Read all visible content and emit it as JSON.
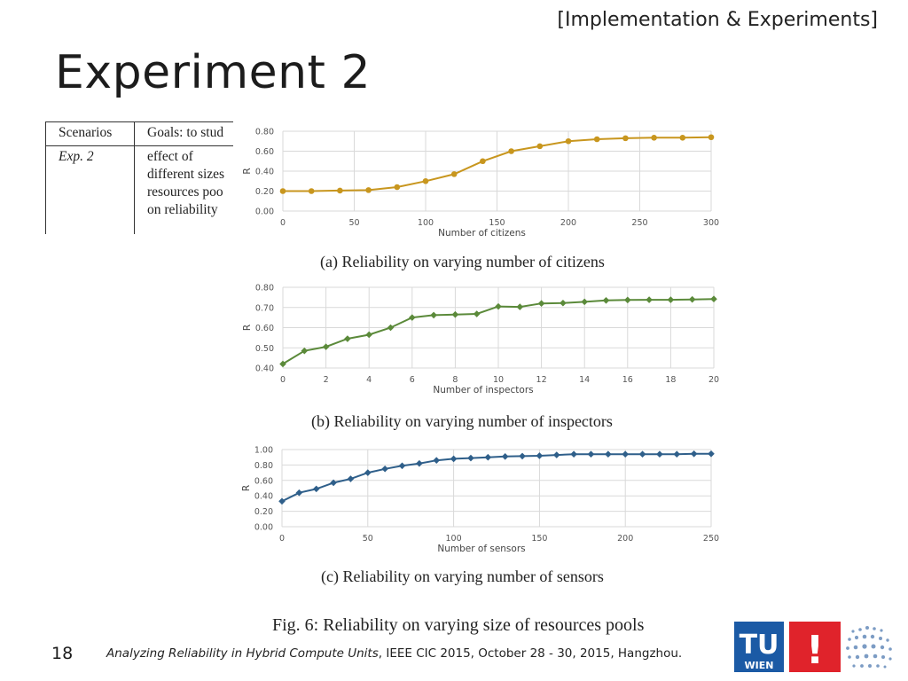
{
  "slide": {
    "section_tag": "[Implementation & Experiments]",
    "title": "Experiment 2",
    "page_number": "18",
    "footer": {
      "paper_title": "Analyzing Reliability in Hybrid Compute Units",
      "rest": ", IEEE CIC 2015, October 28 - 30, 2015, Hangzhou."
    },
    "logo": {
      "text_top": "TU",
      "text_bottom": "WIEN",
      "mark": "!"
    }
  },
  "table": {
    "headers": [
      "Scenarios",
      "Goals: to stud"
    ],
    "row": {
      "scenario": "Exp. 2",
      "goal_lines": [
        "effect of",
        "different sizes",
        "resources poo",
        "on reliability"
      ]
    }
  },
  "figure_caption": "Fig. 6: Reliability on varying size of resources pools",
  "chart_data": [
    {
      "type": "line",
      "caption": "(a) Reliability on varying number of citizens",
      "xlabel": "Number of citizens",
      "ylabel": "R",
      "color": "#c8961e",
      "marker": "circle",
      "xlim": [
        0,
        300
      ],
      "ylim": [
        0,
        0.8
      ],
      "xticks": [
        0,
        50,
        100,
        150,
        200,
        250,
        300
      ],
      "yticks": [
        0,
        0.2,
        0.4,
        0.6,
        0.8
      ],
      "xtick_labels": [
        "0",
        "50",
        "100",
        "150",
        "200",
        "250",
        "300"
      ],
      "ytick_labels": [
        "0.00",
        "0.20",
        "0.40",
        "0.60",
        "0.80"
      ],
      "x": [
        0,
        20,
        40,
        60,
        80,
        100,
        120,
        140,
        160,
        180,
        200,
        220,
        240,
        260,
        280,
        300
      ],
      "values": [
        0.2,
        0.2,
        0.205,
        0.21,
        0.24,
        0.3,
        0.37,
        0.5,
        0.6,
        0.65,
        0.7,
        0.72,
        0.73,
        0.735,
        0.735,
        0.74
      ]
    },
    {
      "type": "line",
      "caption": "(b) Reliability on varying number of inspectors",
      "xlabel": "Number of inspectors",
      "ylabel": "R",
      "color": "#5b8a3a",
      "marker": "diamond",
      "xlim": [
        0,
        20
      ],
      "ylim": [
        0.4,
        0.8
      ],
      "xticks": [
        0,
        2,
        4,
        6,
        8,
        10,
        12,
        14,
        16,
        18,
        20
      ],
      "yticks": [
        0.4,
        0.5,
        0.6,
        0.7,
        0.8
      ],
      "xtick_labels": [
        "0",
        "2",
        "4",
        "6",
        "8",
        "10",
        "12",
        "14",
        "16",
        "18",
        "20"
      ],
      "ytick_labels": [
        "0.40",
        "0.50",
        "0.60",
        "0.70",
        "0.80"
      ],
      "x": [
        0,
        1,
        2,
        3,
        4,
        5,
        6,
        7,
        8,
        9,
        10,
        11,
        12,
        13,
        14,
        15,
        16,
        17,
        18,
        19,
        20
      ],
      "values": [
        0.42,
        0.485,
        0.505,
        0.545,
        0.565,
        0.6,
        0.65,
        0.662,
        0.665,
        0.668,
        0.705,
        0.703,
        0.72,
        0.722,
        0.728,
        0.735,
        0.737,
        0.738,
        0.738,
        0.74,
        0.742
      ]
    },
    {
      "type": "line",
      "caption": "(c) Reliability on varying number of sensors",
      "xlabel": "Number of sensors",
      "ylabel": "R",
      "color": "#2f5f8a",
      "marker": "diamond",
      "xlim": [
        0,
        250
      ],
      "ylim": [
        0,
        1.0
      ],
      "xticks": [
        0,
        50,
        100,
        150,
        200,
        250
      ],
      "yticks": [
        0,
        0.2,
        0.4,
        0.6,
        0.8,
        1.0
      ],
      "xtick_labels": [
        "0",
        "50",
        "100",
        "150",
        "200",
        "250"
      ],
      "ytick_labels": [
        "0.00",
        "0.20",
        "0.40",
        "0.60",
        "0.80",
        "1.00"
      ],
      "x": [
        0,
        10,
        20,
        30,
        40,
        50,
        60,
        70,
        80,
        90,
        100,
        110,
        120,
        130,
        140,
        150,
        160,
        170,
        180,
        190,
        200,
        210,
        220,
        230,
        240,
        250
      ],
      "values": [
        0.33,
        0.44,
        0.49,
        0.57,
        0.62,
        0.7,
        0.75,
        0.79,
        0.82,
        0.86,
        0.88,
        0.89,
        0.9,
        0.91,
        0.915,
        0.92,
        0.93,
        0.94,
        0.94,
        0.94,
        0.94,
        0.94,
        0.94,
        0.94,
        0.945,
        0.945
      ]
    }
  ]
}
